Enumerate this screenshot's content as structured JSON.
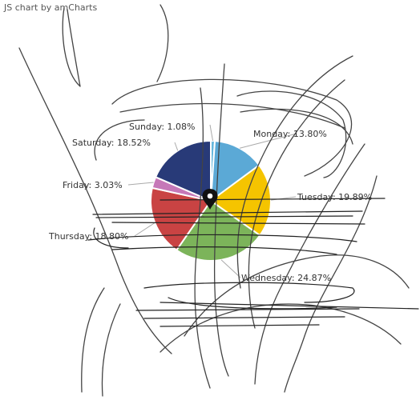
{
  "credit_text": "JS chart by amCharts",
  "chart_data": {
    "type": "pie",
    "title": "",
    "slices": [
      {
        "label": "Sunday: 1.08%",
        "category": "Sunday",
        "value": 1.08,
        "color": "#67b7dc"
      },
      {
        "label": "Monday: 13.80%",
        "category": "Monday",
        "value": 13.8,
        "color": "#5ba9d6"
      },
      {
        "label": "Tuesday: 19.89%",
        "category": "Tuesday",
        "value": 19.89,
        "color": "#f5c400"
      },
      {
        "label": "Wednesday: 24.87%",
        "category": "Wednesday",
        "value": 24.87,
        "color": "#7cb45a"
      },
      {
        "label": "Thursday: 18.80%",
        "category": "Thursday",
        "value": 18.8,
        "color": "#c94343"
      },
      {
        "label": "Friday: 3.03%",
        "category": "Friday",
        "value": 3.03,
        "color": "#c678b8"
      },
      {
        "label": "Saturday: 18.52%",
        "category": "Saturday",
        "value": 18.52,
        "color": "#283a78"
      }
    ]
  },
  "overlay": {
    "pin_icon": "map-pin-icon",
    "stroke_colors": [
      "#222222",
      "#555555",
      "#666666"
    ]
  }
}
